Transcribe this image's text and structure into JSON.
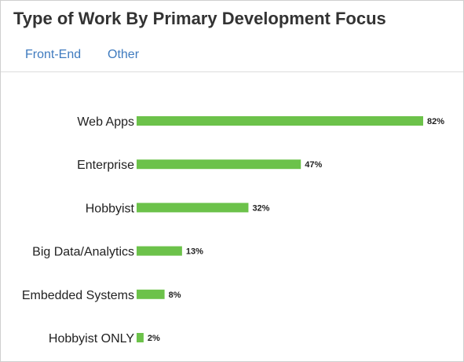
{
  "header": {
    "title": "Type of Work By Primary Development Focus"
  },
  "tabs": [
    {
      "label": "Front-End"
    },
    {
      "label": "Other"
    }
  ],
  "colors": {
    "bar": "#6cc24a",
    "tab_link": "#3f7bbf",
    "title": "#333333"
  },
  "chart_data": {
    "type": "bar",
    "orientation": "horizontal",
    "title": "Type of Work By Primary Development Focus",
    "categories": [
      "Web Apps",
      "Enterprise",
      "Hobbyist",
      "Big Data/Analytics",
      "Embedded Systems",
      "Hobbyist ONLY"
    ],
    "values": [
      82,
      47,
      32,
      13,
      8,
      2
    ],
    "value_labels": [
      "82%",
      "47%",
      "32%",
      "13%",
      "8%",
      "2%"
    ],
    "unit": "%",
    "xlim": [
      0,
      82
    ],
    "grid": false,
    "legend": "none"
  }
}
